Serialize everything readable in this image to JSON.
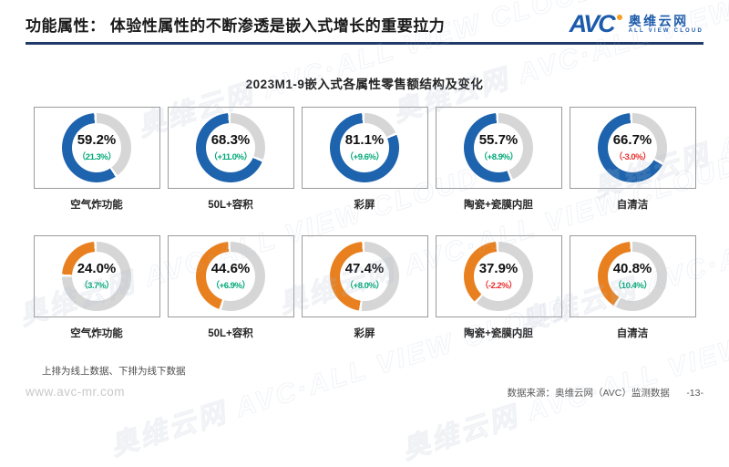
{
  "header": {
    "title": "功能属性： 体验性属性的不断渗透是嵌入式增长的重要拉力",
    "logo": {
      "avc": "AVC",
      "cn": "奥维云网",
      "en": "ALL VIEW CLOUD"
    }
  },
  "chart": {
    "title": "2023M1-9嵌入式各属性零售额结构及变化",
    "note": "上排为线上数据、下排为线下数据",
    "rows": [
      {
        "name": "online",
        "color": "#1e63ad",
        "items": [
          {
            "label": "空气炸功能",
            "value": 59.2,
            "value_text": "59.2%",
            "change_text": "（21.3%）",
            "change_dir": "up"
          },
          {
            "label": "50L+容积",
            "value": 68.3,
            "value_text": "68.3%",
            "change_text": "（+11.0%）",
            "change_dir": "up"
          },
          {
            "label": "彩屏",
            "value": 81.1,
            "value_text": "81.1%",
            "change_text": "（+9.6%）",
            "change_dir": "up"
          },
          {
            "label": "陶瓷+瓷膜内胆",
            "value": 55.7,
            "value_text": "55.7%",
            "change_text": "（+8.9%）",
            "change_dir": "up"
          },
          {
            "label": "自清洁",
            "value": 66.7,
            "value_text": "66.7%",
            "change_text": "（-3.0%）",
            "change_dir": "down"
          }
        ]
      },
      {
        "name": "offline",
        "color": "#e8801f",
        "items": [
          {
            "label": "空气炸功能",
            "value": 24.0,
            "value_text": "24.0%",
            "change_text": "（3.7%）",
            "change_dir": "up"
          },
          {
            "label": "50L+容积",
            "value": 44.6,
            "value_text": "44.6%",
            "change_text": "（+6.9%）",
            "change_dir": "up"
          },
          {
            "label": "彩屏",
            "value": 47.4,
            "value_text": "47.4%",
            "change_text": "（+8.0%）",
            "change_dir": "up"
          },
          {
            "label": "陶瓷+瓷膜内胆",
            "value": 37.9,
            "value_text": "37.9%",
            "change_text": "（-2.2%）",
            "change_dir": "down"
          },
          {
            "label": "自清洁",
            "value": 40.8,
            "value_text": "40.8%",
            "change_text": "（10.4%）",
            "change_dir": "up"
          }
        ]
      }
    ]
  },
  "chart_data": {
    "type": "pie",
    "title": "2023M1-9嵌入式各属性零售额结构及变化",
    "subtitle": "donut share charts, share of retail sales by attribute",
    "categories": [
      "空气炸功能",
      "50L+容积",
      "彩屏",
      "陶瓷+瓷膜内胆",
      "自清洁"
    ],
    "series": [
      {
        "name": "线上（上排）",
        "values": [
          59.2,
          68.3,
          81.1,
          55.7,
          66.7
        ],
        "changes": [
          21.3,
          11.0,
          9.6,
          8.9,
          -3.0
        ],
        "color": "#1e63ad"
      },
      {
        "name": "线下（下排）",
        "values": [
          24.0,
          44.6,
          47.4,
          37.9,
          40.8
        ],
        "changes": [
          3.7,
          6.9,
          8.0,
          -2.2,
          10.4
        ],
        "color": "#e8801f"
      }
    ],
    "note": "上排为线上数据、下排为线下数据",
    "value_unit": "%"
  },
  "colors": {
    "up": "#00a878",
    "down": "#e92d2d",
    "track": "#d6d6d6",
    "rule": "#1f3a68",
    "brand_blue": "#1c5bab",
    "brand_orange": "#f5a01e"
  },
  "watermark": {
    "text": "奥维云网 AVC·ALL VIEW CLOUD"
  },
  "footer": {
    "site": "www.avc-mr.com",
    "source": "数据来源：奥维云网（AVC）监测数据",
    "page": "-13-"
  }
}
